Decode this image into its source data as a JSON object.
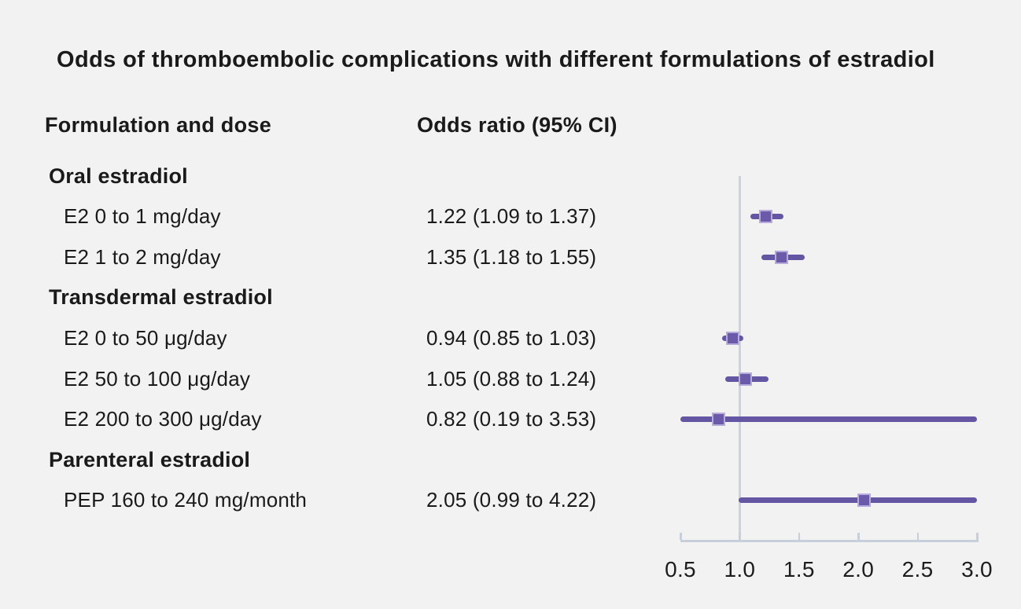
{
  "title": "Odds of thromboembolic complications with different formulations of estradiol",
  "columns": {
    "formulation": "Formulation and dose",
    "odds": "Odds ratio (95% CI)"
  },
  "colors": {
    "background": "#f2f2f2",
    "text": "#1a1a1a",
    "ci_line": "#6456a3",
    "marker_fill": "#6a5aa9",
    "marker_border": "#b7abdc",
    "reference_line": "#ccd3e0",
    "axis": "#c7cfda"
  },
  "chart_data": {
    "type": "forest",
    "title": "Odds of thromboembolic complications with different formulations of estradiol",
    "xlim": [
      0.5,
      3.0
    ],
    "reference_value": 1.0,
    "tick_values": [
      0.5,
      1.0,
      1.5,
      2.0,
      2.5,
      3.0
    ],
    "tick_labels": [
      "0.5",
      "1.0",
      "1.5",
      "2.0",
      "2.5",
      "3.0"
    ],
    "grid": false,
    "groups": [
      {
        "label": "Oral estradiol",
        "items": [
          {
            "label": "E2 0 to 1 mg/day",
            "display": "1.22 (1.09 to 1.37)",
            "or": 1.22,
            "lo": 1.09,
            "hi": 1.37
          },
          {
            "label": "E2 1 to 2 mg/day",
            "display": "1.35 (1.18 to 1.55)",
            "or": 1.35,
            "lo": 1.18,
            "hi": 1.55
          }
        ]
      },
      {
        "label": "Transdermal estradiol",
        "items": [
          {
            "label": "E2 0 to 50 μg/day",
            "display": "0.94 (0.85 to 1.03)",
            "or": 0.94,
            "lo": 0.85,
            "hi": 1.03
          },
          {
            "label": "E2 50 to 100 μg/day",
            "display": "1.05 (0.88 to 1.24)",
            "or": 1.05,
            "lo": 0.88,
            "hi": 1.24
          },
          {
            "label": "E2 200 to 300 μg/day",
            "display": "0.82 (0.19 to 3.53)",
            "or": 0.82,
            "lo": 0.19,
            "hi": 3.53
          }
        ]
      },
      {
        "label": "Parenteral estradiol",
        "items": [
          {
            "label": "PEP 160 to 240 mg/month",
            "display": "2.05 (0.99 to 4.22)",
            "or": 2.05,
            "lo": 0.99,
            "hi": 4.22
          }
        ]
      }
    ]
  }
}
